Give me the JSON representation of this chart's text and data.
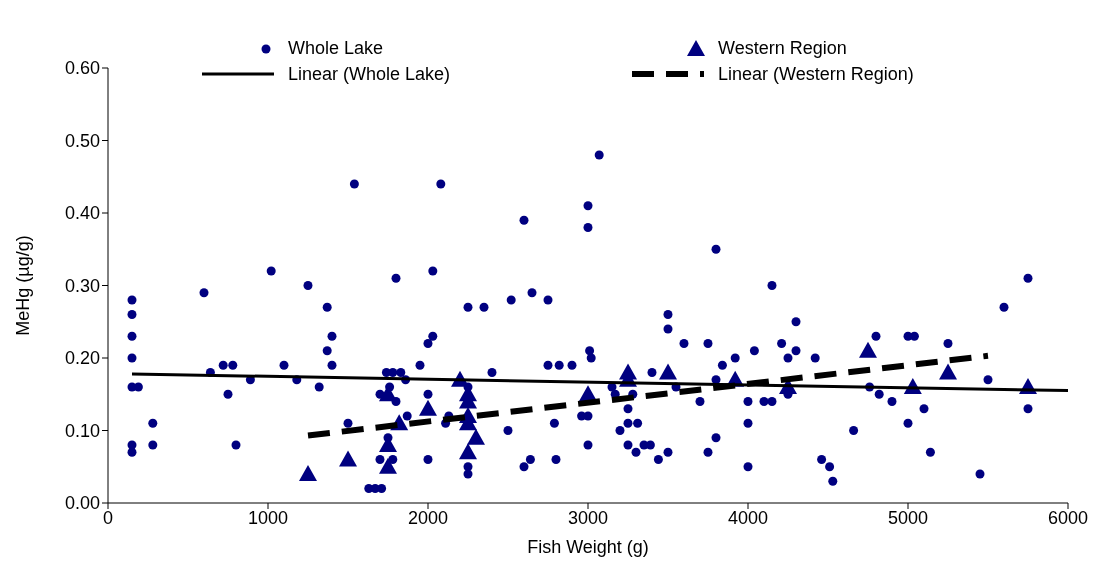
{
  "chart_data": {
    "type": "scatter",
    "xlabel": "Fish Weight (g)",
    "ylabel": "MeHg (µg/g)",
    "xlim": [
      0,
      6000
    ],
    "xticks": [
      0,
      1000,
      2000,
      3000,
      4000,
      5000,
      6000
    ],
    "ylim": [
      0,
      0.6
    ],
    "yticks": [
      {
        "value": 0,
        "label": "0.00"
      },
      {
        "value": 0.1,
        "label": "0.10"
      },
      {
        "value": 0.2,
        "label": "0.20"
      },
      {
        "value": 0.3,
        "label": "0.30"
      },
      {
        "value": 0.4,
        "label": "0.40"
      },
      {
        "value": 0.5,
        "label": "0.50"
      },
      {
        "value": 0.6,
        "label": "0.60"
      }
    ],
    "grid": false,
    "legend": "top",
    "series": [
      {
        "name": "Whole Lake",
        "type": "scatter",
        "marker": "circle",
        "color": "#000080",
        "x": [
          150,
          150,
          150,
          150,
          150,
          150,
          150,
          190,
          280,
          280,
          600,
          640,
          720,
          780,
          750,
          800,
          890,
          1020,
          1100,
          1180,
          1250,
          1320,
          1370,
          1370,
          1400,
          1400,
          1500,
          1540,
          1630,
          1670,
          1710,
          1700,
          1700,
          1740,
          1760,
          1750,
          1780,
          1780,
          1800,
          1800,
          1830,
          1860,
          1870,
          1950,
          2000,
          2000,
          2000,
          2030,
          2030,
          2080,
          2110,
          2130,
          2250,
          2250,
          2250,
          2250,
          2350,
          2400,
          2500,
          2520,
          2600,
          2600,
          2640,
          2650,
          2750,
          2750,
          2790,
          2800,
          2820,
          2900,
          3000,
          3000,
          3070,
          3010,
          3020,
          2960,
          3000,
          3000,
          3150,
          3170,
          3200,
          3250,
          3250,
          3310,
          3280,
          3250,
          3300,
          3350,
          3390,
          3400,
          3440,
          3500,
          3500,
          3500,
          3550,
          3600,
          3700,
          3750,
          3750,
          3800,
          3800,
          3800,
          3840,
          3920,
          4000,
          4000,
          4000,
          4040,
          4100,
          4150,
          4150,
          4210,
          4250,
          4250,
          4300,
          4300,
          4420,
          4460,
          4510,
          4530,
          4660,
          4760,
          4800,
          4820,
          4900,
          5000,
          5040,
          5000,
          5100,
          5140,
          5250,
          5450,
          5500,
          5600,
          5750,
          5750
        ],
        "values": [
          0.28,
          0.26,
          0.23,
          0.2,
          0.16,
          0.08,
          0.07,
          0.16,
          0.11,
          0.08,
          0.29,
          0.18,
          0.19,
          0.19,
          0.15,
          0.08,
          0.17,
          0.32,
          0.19,
          0.17,
          0.3,
          0.16,
          0.27,
          0.21,
          0.23,
          0.19,
          0.11,
          0.44,
          0.02,
          0.02,
          0.02,
          0.15,
          0.06,
          0.18,
          0.16,
          0.09,
          0.18,
          0.06,
          0.31,
          0.14,
          0.18,
          0.17,
          0.12,
          0.19,
          0.22,
          0.15,
          0.06,
          0.23,
          0.32,
          0.44,
          0.11,
          0.12,
          0.27,
          0.16,
          0.05,
          0.04,
          0.27,
          0.18,
          0.1,
          0.28,
          0.39,
          0.05,
          0.06,
          0.29,
          0.28,
          0.19,
          0.11,
          0.06,
          0.19,
          0.19,
          0.41,
          0.38,
          0.48,
          0.21,
          0.2,
          0.12,
          0.12,
          0.08,
          0.16,
          0.15,
          0.1,
          0.13,
          0.11,
          0.11,
          0.15,
          0.08,
          0.07,
          0.08,
          0.08,
          0.18,
          0.06,
          0.26,
          0.24,
          0.07,
          0.16,
          0.22,
          0.14,
          0.22,
          0.07,
          0.35,
          0.17,
          0.09,
          0.19,
          0.2,
          0.14,
          0.11,
          0.05,
          0.21,
          0.14,
          0.14,
          0.3,
          0.22,
          0.2,
          0.15,
          0.25,
          0.21,
          0.2,
          0.06,
          0.05,
          0.03,
          0.1,
          0.16,
          0.23,
          0.15,
          0.14,
          0.23,
          0.23,
          0.11,
          0.13,
          0.07,
          0.22,
          0.04,
          0.17,
          0.27,
          0.31,
          0.13
        ]
      },
      {
        "name": "Western Region",
        "type": "scatter",
        "marker": "triangle",
        "color": "#000080",
        "x": [
          1250,
          1500,
          1750,
          1750,
          1750,
          1820,
          2000,
          2200,
          2250,
          2250,
          2250,
          2250,
          2250,
          2300,
          3000,
          3250,
          3250,
          3500,
          3920,
          4250,
          4750,
          5030,
          5250,
          5750
        ],
        "values": [
          0.04,
          0.06,
          0.08,
          0.05,
          0.15,
          0.11,
          0.13,
          0.17,
          0.15,
          0.14,
          0.12,
          0.11,
          0.07,
          0.09,
          0.15,
          0.18,
          0.17,
          0.18,
          0.17,
          0.16,
          0.21,
          0.16,
          0.18,
          0.16
        ]
      },
      {
        "name": "Linear (Whole Lake)",
        "type": "line",
        "marker": "none",
        "line_style": "solid",
        "color": "#000000",
        "x": [
          150,
          6000
        ],
        "values": [
          0.178,
          0.155
        ]
      },
      {
        "name": "Linear (Western Region)",
        "type": "line",
        "marker": "none",
        "line_style": "dashed",
        "color": "#000000",
        "x": [
          1250,
          5500
        ],
        "values": [
          0.093,
          0.203
        ]
      }
    ]
  }
}
